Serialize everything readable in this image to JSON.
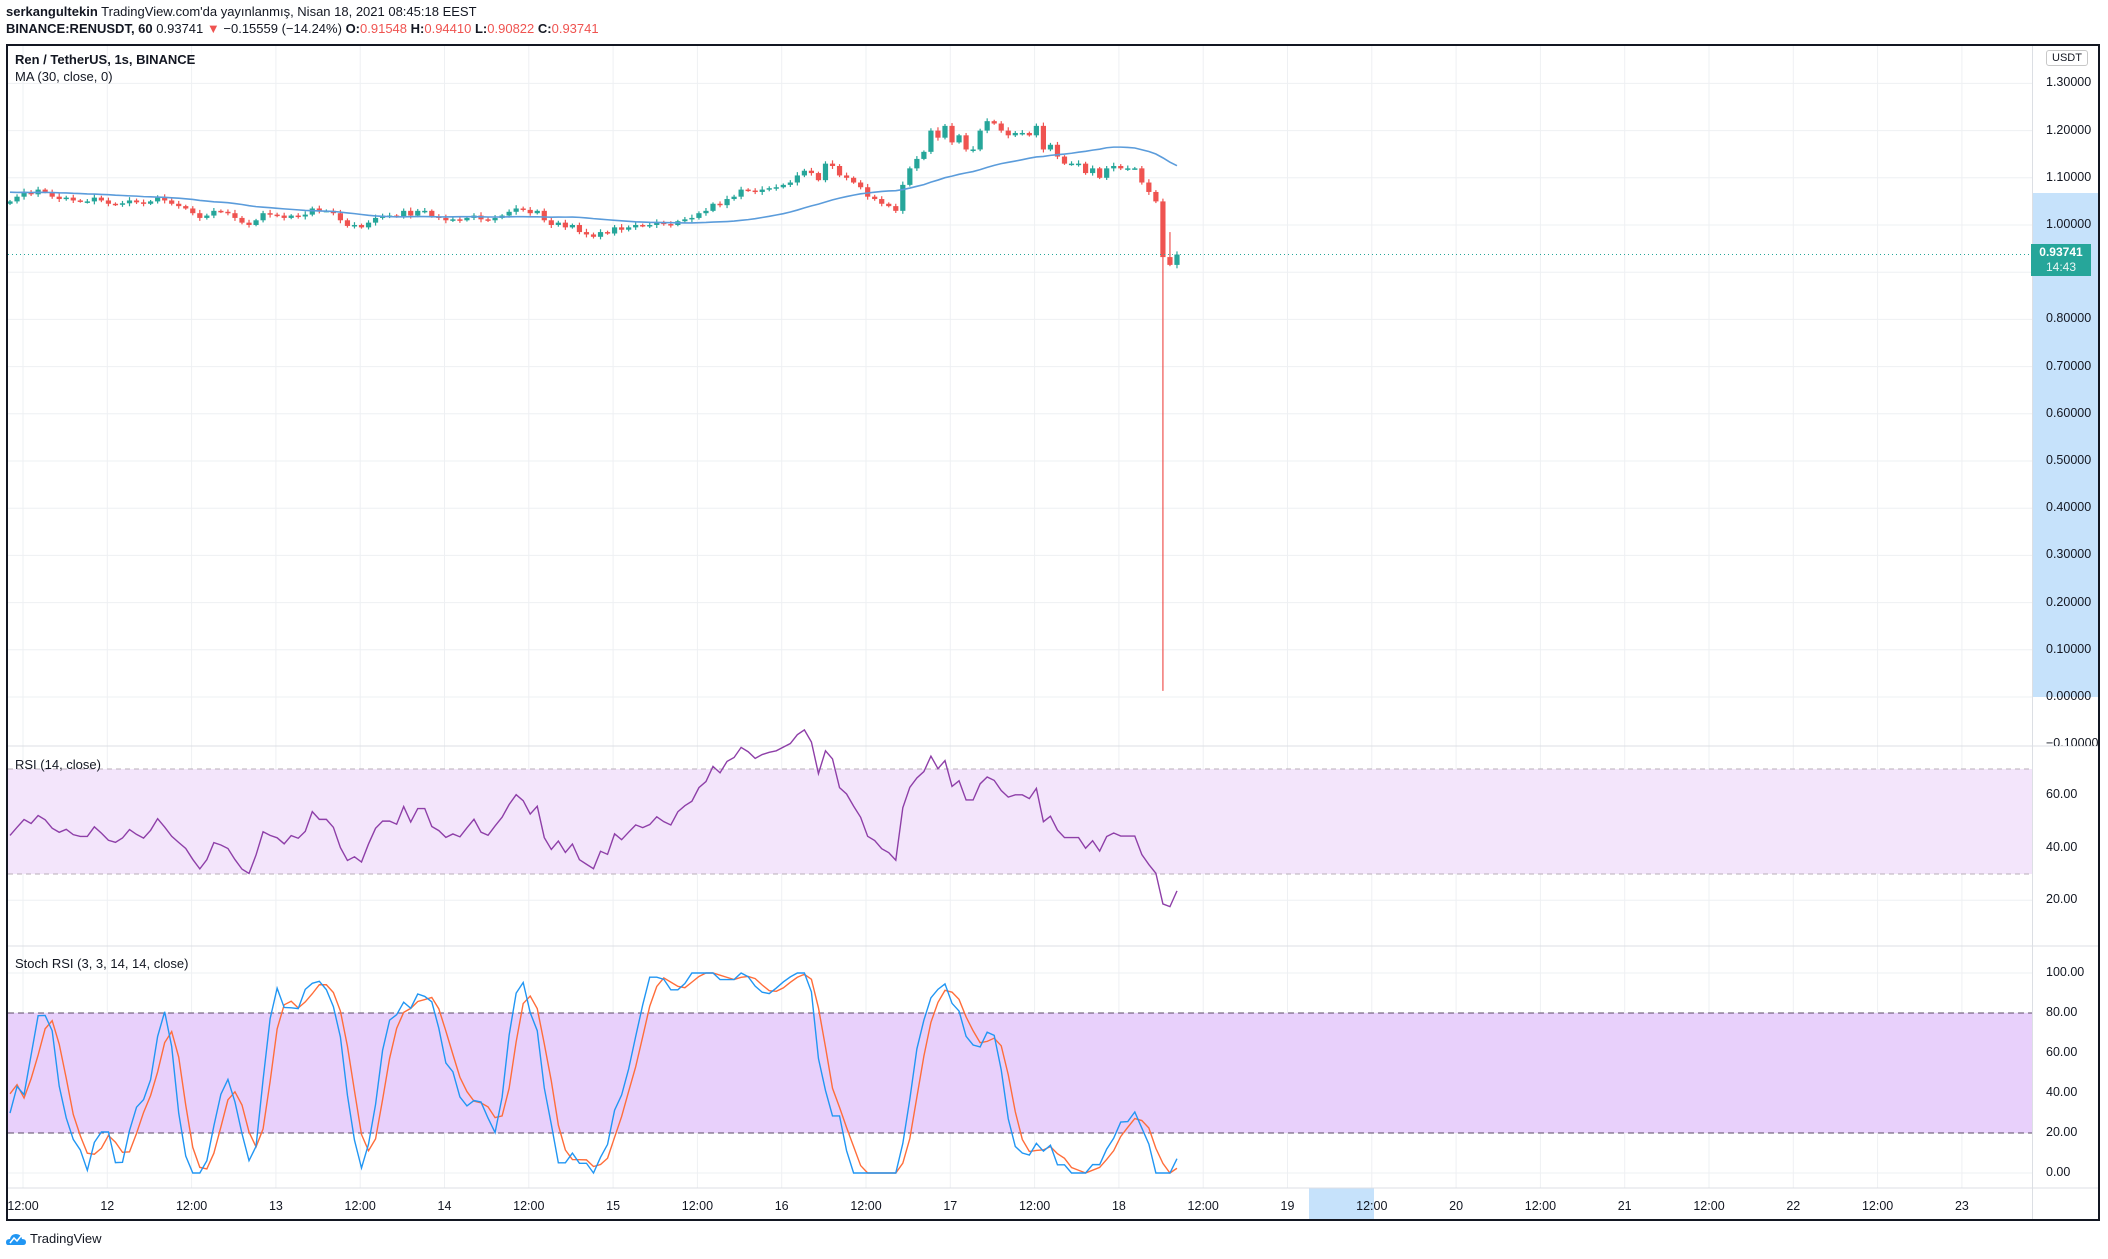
{
  "header": {
    "author": "serkangultekin",
    "published": "TradingView.com'da yayınlanmış, Nisan 18, 2021 08:45:18 EEST",
    "symbol": "BINANCE:RENUSDT, 60",
    "last": "0.93741",
    "change": "−0.15559 (−14.24%)",
    "o_label": "O:",
    "o": "0.91548",
    "h_label": "H:",
    "h": "0.94410",
    "l_label": "L:",
    "l": "0.90822",
    "c_label": "C:",
    "c": "0.93741"
  },
  "chart": {
    "title": "Ren / TetherUS, 1s, BINANCE",
    "ma_label": "MA (30, close, 0)",
    "currency": "USDT",
    "price_label": "0.93741",
    "countdown": "14:43",
    "rsi_label": "RSI (14, close)",
    "stoch_label": "Stoch RSI (3, 3, 14, 14, close)",
    "price_ticks": [
      "1.30000",
      "1.20000",
      "1.10000",
      "1.00000",
      "0.80000",
      "0.70000",
      "0.60000",
      "0.50000",
      "0.40000",
      "0.30000",
      "0.20000",
      "0.10000",
      "0.00000",
      "−0.10000"
    ],
    "rsi_ticks": [
      "60.00",
      "40.00",
      "20.00"
    ],
    "stoch_ticks": [
      "100.00",
      "80.00",
      "60.00",
      "40.00",
      "20.00",
      "0.00"
    ],
    "time_ticks": [
      "12:00",
      "12",
      "12:00",
      "13",
      "12:00",
      "14",
      "12:00",
      "15",
      "12:00",
      "16",
      "12:00",
      "17",
      "12:00",
      "18",
      "12:00",
      "19",
      "12:00",
      "20",
      "12:00",
      "21",
      "12:00",
      "22",
      "12:00",
      "23"
    ]
  },
  "footer": {
    "brand": "TradingView"
  },
  "chart_data": {
    "type": "candlestick",
    "interval": "60",
    "first_open": 1.045,
    "closes": [
      1.05,
      1.06,
      1.07,
      1.065,
      1.075,
      1.07,
      1.06,
      1.055,
      1.058,
      1.052,
      1.05,
      1.05,
      1.058,
      1.052,
      1.045,
      1.043,
      1.046,
      1.052,
      1.048,
      1.045,
      1.05,
      1.058,
      1.052,
      1.045,
      1.04,
      1.035,
      1.025,
      1.015,
      1.02,
      1.03,
      1.028,
      1.025,
      1.015,
      1.005,
      1.0,
      1.01,
      1.025,
      1.022,
      1.02,
      1.015,
      1.02,
      1.018,
      1.022,
      1.035,
      1.03,
      1.03,
      1.025,
      1.01,
      0.998,
      1.0,
      0.995,
      1.005,
      1.015,
      1.02,
      1.02,
      1.018,
      1.03,
      1.02,
      1.03,
      1.03,
      1.018,
      1.015,
      1.01,
      1.012,
      1.01,
      1.015,
      1.02,
      1.012,
      1.01,
      1.015,
      1.02,
      1.028,
      1.035,
      1.032,
      1.025,
      1.03,
      1.01,
      1.0,
      1.005,
      0.995,
      1.0,
      0.985,
      0.98,
      0.975,
      0.985,
      0.982,
      0.995,
      0.99,
      0.995,
      1.0,
      0.998,
      1.0,
      1.005,
      1.002,
      1.0,
      1.008,
      1.012,
      1.015,
      1.025,
      1.03,
      1.045,
      1.042,
      1.055,
      1.06,
      1.075,
      1.073,
      1.07,
      1.075,
      1.078,
      1.08,
      1.085,
      1.09,
      1.105,
      1.115,
      1.11,
      1.095,
      1.13,
      1.125,
      1.105,
      1.1,
      1.09,
      1.08,
      1.06,
      1.055,
      1.045,
      1.04,
      1.03,
      1.085,
      1.12,
      1.14,
      1.155,
      1.2,
      1.185,
      1.21,
      1.175,
      1.19,
      1.16,
      1.16,
      1.2,
      1.22,
      1.215,
      1.2,
      1.19,
      1.195,
      1.195,
      1.19,
      1.21,
      1.16,
      1.17,
      1.145,
      1.13,
      1.13,
      1.13,
      1.11,
      1.12,
      1.1,
      1.12,
      1.125,
      1.12,
      1.12,
      1.12,
      1.09,
      1.07,
      1.05,
      0.932,
      0.91548,
      0.93741
    ],
    "low_overrides": {
      "164": 0.013,
      "166": 0.90822
    },
    "high_overrides": {
      "165": 0.985,
      "166": 0.9441
    },
    "warmup_close": 1.07,
    "ma_period": 30,
    "rsi_period": 14,
    "stoch_rsi": {
      "k": 3,
      "d": 3,
      "rsi_length": 14,
      "stoch_length": 14
    },
    "price_ylim": [
      -0.1,
      1.3
    ],
    "rsi_bands": [
      30,
      70
    ],
    "stoch_bands": [
      20,
      80
    ],
    "last_price": 0.93741,
    "colors": {
      "up": "#26a69a",
      "down": "#ef5350",
      "ma": "#5b9cdb",
      "rsi": "#8e3fa8",
      "k": "#2196f3",
      "d": "#ff6d3a",
      "last_price": "#26a69a"
    }
  }
}
